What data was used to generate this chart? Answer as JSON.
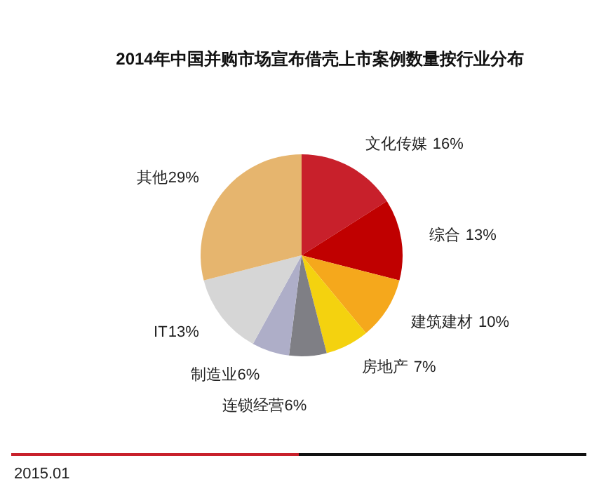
{
  "chart_data": {
    "type": "pie",
    "title": "2014年中国并购市场宣布借壳上市案例数量按行业分布",
    "categories": [
      "文化传媒",
      "综合",
      "建筑建材",
      "房地产",
      "连锁经营",
      "制造业",
      "IT",
      "其他"
    ],
    "values": [
      16,
      13,
      10,
      7,
      6,
      6,
      13,
      29
    ],
    "colors": [
      "#c8202b",
      "#c00000",
      "#f5a81c",
      "#f4d20f",
      "#7f7f85",
      "#aeaec8",
      "#d6d6d6",
      "#e6b56e"
    ],
    "value_labels": [
      "16%",
      "13%",
      "10%",
      "7%",
      "6%",
      "6%",
      "13%",
      "29%"
    ],
    "annotations": [
      "2015.01"
    ]
  }
}
